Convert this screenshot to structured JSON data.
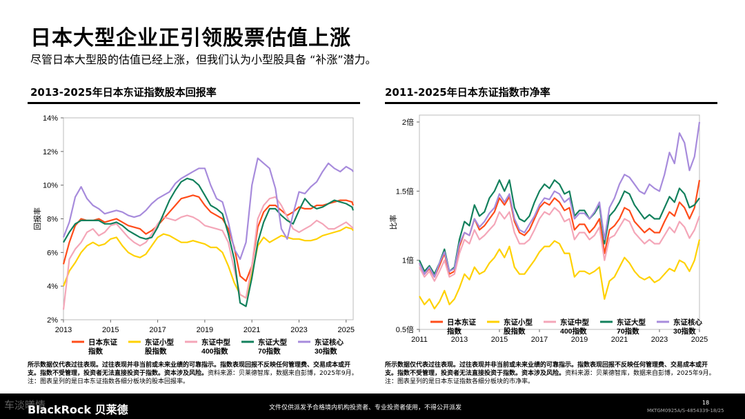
{
  "page": {
    "title": "日本大型企业正引领股票估值上涨",
    "subtitle": "尽管日本大型股的估值已经上涨，但我们认为小型股具备 “补涨”潜力。",
    "page_number": "18",
    "doc_code": "MKTGM0925A/S-4854339-18/25",
    "watermark": "车淡曦情",
    "logo": "BlackRock 贝莱德",
    "disclaimer": "文件仅供派发予合格境内机构投资者、专业投资者使用，不得公开派发"
  },
  "left_chart": {
    "title": "2013-2025年日本东证指数股本回报率",
    "footnote_bold": "所示数据仅代表过往表现。过往表现并非当前或未来业绩的可靠指示。指数表现回报不反映任何管理费、交易成本或开支。指数不受管理，投资者无法直接投资于指数。资本涉及风险。",
    "footnote_rest": "资料来源：贝莱德智库，数据来自彭博，2025年9月。注：图表呈列的是日本东证指数各细分板块的股本回报率。"
  },
  "right_chart": {
    "title": "2011-2025年日本东证指数市净率",
    "footnote_bold": "所示数据仅代表过往表现。过往表现并非当前或未来业绩的可靠指示。指数表现回报不反映任何管理费、交易成本或开支。指数不受管理，投资者无法直接投资于指数。资本涉及风险。",
    "footnote_rest": "资料来源：贝莱德智库，数据来自彭博，2025年9月。注：图表呈列的是日本东证指数各细分板块的市净率。"
  },
  "chart_data": [
    {
      "type": "line",
      "title": "2013-2025年日本东证指数股本回报率",
      "ylabel": "回报率",
      "xlabel": "",
      "xlim": [
        2013,
        2025.3
      ],
      "ylim": [
        2,
        14
      ],
      "yticks": [
        2,
        4,
        6,
        8,
        10,
        12,
        14
      ],
      "ytick_labels": [
        "2%",
        "4%",
        "6%",
        "8%",
        "10%",
        "12%",
        "14%"
      ],
      "xticks": [
        2013,
        2015,
        2017,
        2019,
        2021,
        2023,
        2025
      ],
      "xtick_labels": [
        "2013",
        "2015",
        "2017",
        "2019",
        "2021",
        "2023",
        "2025"
      ],
      "legend_position": "bottom",
      "x": [
        2013.0,
        2013.25,
        2013.5,
        2013.75,
        2014.0,
        2014.25,
        2014.5,
        2014.75,
        2015.0,
        2015.25,
        2015.5,
        2015.75,
        2016.0,
        2016.25,
        2016.5,
        2016.75,
        2017.0,
        2017.25,
        2017.5,
        2017.75,
        2018.0,
        2018.25,
        2018.5,
        2018.75,
        2019.0,
        2019.25,
        2019.5,
        2019.75,
        2020.0,
        2020.25,
        2020.5,
        2020.75,
        2021.0,
        2021.25,
        2021.5,
        2021.75,
        2022.0,
        2022.25,
        2022.5,
        2022.75,
        2023.0,
        2023.25,
        2023.5,
        2023.75,
        2024.0,
        2024.25,
        2024.5,
        2024.75,
        2025.0,
        2025.25,
        2025.3
      ],
      "series": [
        {
          "name": "日本东证\n指数",
          "color": "#ff4c1a",
          "values": [
            5.3,
            6.6,
            7.6,
            8.0,
            7.9,
            7.9,
            8.0,
            7.8,
            7.9,
            8.0,
            7.8,
            7.6,
            7.5,
            7.4,
            7.1,
            7.3,
            7.6,
            8.0,
            8.4,
            8.8,
            9.2,
            9.3,
            9.4,
            9.3,
            8.8,
            8.4,
            8.2,
            8.0,
            7.4,
            6.3,
            4.6,
            4.3,
            5.2,
            7.5,
            8.4,
            8.8,
            8.8,
            8.5,
            8.2,
            8.4,
            8.7,
            8.6,
            8.6,
            8.8,
            8.8,
            8.9,
            9.0,
            9.1,
            9.1,
            9.0,
            8.8
          ]
        },
        {
          "name": "东证小型\n股指数",
          "color": "#ffd100",
          "values": [
            4.0,
            4.9,
            5.4,
            6.0,
            6.4,
            6.6,
            6.4,
            6.5,
            6.8,
            6.9,
            6.4,
            6.0,
            5.8,
            5.7,
            5.9,
            6.4,
            6.9,
            7.1,
            7.0,
            6.8,
            6.6,
            6.6,
            6.7,
            6.6,
            6.5,
            6.3,
            6.3,
            6.0,
            5.2,
            4.2,
            3.5,
            3.3,
            4.7,
            6.4,
            6.9,
            6.6,
            6.8,
            7.0,
            6.9,
            6.8,
            6.8,
            6.7,
            6.7,
            6.8,
            7.0,
            7.1,
            7.2,
            7.3,
            7.5,
            7.4,
            7.3
          ]
        },
        {
          "name": "东证中型\n400指数",
          "color": "#f4a6b8",
          "values": [
            2.6,
            5.6,
            6.2,
            6.6,
            7.2,
            7.4,
            7.0,
            7.2,
            7.6,
            7.7,
            7.3,
            6.9,
            6.6,
            6.4,
            6.6,
            7.1,
            7.7,
            8.1,
            8.0,
            7.9,
            8.1,
            8.2,
            8.1,
            7.9,
            7.6,
            7.5,
            7.4,
            7.3,
            6.6,
            5.0,
            3.5,
            3.3,
            5.2,
            8.0,
            8.8,
            9.2,
            9.3,
            8.8,
            8.1,
            7.4,
            7.2,
            7.4,
            7.6,
            7.9,
            7.7,
            7.4,
            7.4,
            7.6,
            7.8,
            7.5,
            7.4
          ]
        },
        {
          "name": "东证大型\n70指数",
          "color": "#12805c",
          "values": [
            6.6,
            7.2,
            7.7,
            7.9,
            7.9,
            7.9,
            7.9,
            7.7,
            7.7,
            7.8,
            7.6,
            7.3,
            7.1,
            6.9,
            6.8,
            6.9,
            7.5,
            8.3,
            9.1,
            9.7,
            10.2,
            10.4,
            10.3,
            10.0,
            9.4,
            8.8,
            8.6,
            8.3,
            7.1,
            5.6,
            3.0,
            2.8,
            4.5,
            6.6,
            7.8,
            8.6,
            8.6,
            8.2,
            7.9,
            7.7,
            8.5,
            9.2,
            8.8,
            8.6,
            8.7,
            8.9,
            9.1,
            9.0,
            8.9,
            8.7,
            8.5
          ]
        },
        {
          "name": "东证核心\n30指数",
          "color": "#a78bdc",
          "values": [
            6.9,
            7.8,
            9.3,
            9.9,
            9.2,
            8.8,
            8.6,
            8.3,
            8.4,
            8.5,
            8.4,
            8.2,
            8.1,
            8.2,
            8.5,
            8.9,
            9.2,
            9.4,
            9.6,
            10.1,
            10.4,
            10.6,
            10.8,
            11.0,
            11.0,
            10.0,
            9.2,
            9.0,
            7.8,
            6.2,
            5.6,
            6.6,
            10.0,
            11.6,
            11.3,
            11.0,
            9.8,
            7.4,
            6.8,
            8.3,
            9.6,
            9.5,
            9.9,
            10.2,
            10.8,
            11.3,
            11.0,
            10.8,
            11.1,
            10.9,
            10.8
          ]
        }
      ]
    },
    {
      "type": "line",
      "title": "2011-2025年日本东证指数市净率",
      "ylabel": "比率",
      "xlabel": "",
      "xlim": [
        2011,
        2025
      ],
      "ylim": [
        0.5,
        2.05
      ],
      "yticks": [
        0.5,
        1,
        1.5,
        2
      ],
      "ytick_labels": [
        "0.5倍",
        "1倍",
        "1.5倍",
        "2倍"
      ],
      "xticks": [
        2011,
        2013,
        2015,
        2017,
        2019,
        2021,
        2023,
        2025
      ],
      "xtick_labels": [
        "2011",
        "2013",
        "2015",
        "2017",
        "2019",
        "2021",
        "2023",
        "2025"
      ],
      "legend_position": "bottom",
      "x": [
        2011.0,
        2011.25,
        2011.5,
        2011.75,
        2012.0,
        2012.25,
        2012.5,
        2012.75,
        2013.0,
        2013.25,
        2013.5,
        2013.75,
        2014.0,
        2014.25,
        2014.5,
        2014.75,
        2015.0,
        2015.25,
        2015.5,
        2015.75,
        2016.0,
        2016.25,
        2016.5,
        2016.75,
        2017.0,
        2017.25,
        2017.5,
        2017.75,
        2018.0,
        2018.25,
        2018.5,
        2018.75,
        2019.0,
        2019.25,
        2019.5,
        2019.75,
        2020.0,
        2020.25,
        2020.5,
        2020.75,
        2021.0,
        2021.25,
        2021.5,
        2021.75,
        2022.0,
        2022.25,
        2022.5,
        2022.75,
        2023.0,
        2023.25,
        2023.5,
        2023.75,
        2024.0,
        2024.25,
        2024.5,
        2024.75,
        2025.0
      ],
      "series": [
        {
          "name": "日本东证\n指数",
          "color": "#ff4c1a",
          "values": [
            0.98,
            0.9,
            0.94,
            0.88,
            0.96,
            1.05,
            0.9,
            0.92,
            1.1,
            1.2,
            1.18,
            1.3,
            1.22,
            1.25,
            1.3,
            1.35,
            1.45,
            1.4,
            1.46,
            1.28,
            1.2,
            1.18,
            1.22,
            1.3,
            1.38,
            1.42,
            1.4,
            1.45,
            1.42,
            1.36,
            1.38,
            1.22,
            1.26,
            1.26,
            1.2,
            1.24,
            1.3,
            1.05,
            1.22,
            1.25,
            1.3,
            1.38,
            1.36,
            1.28,
            1.24,
            1.2,
            1.23,
            1.2,
            1.2,
            1.28,
            1.35,
            1.32,
            1.42,
            1.38,
            1.3,
            1.38,
            1.58
          ]
        },
        {
          "name": "东证小型\n股指数",
          "color": "#ffd100",
          "values": [
            0.74,
            0.68,
            0.72,
            0.65,
            0.7,
            0.78,
            0.68,
            0.72,
            0.8,
            0.9,
            0.86,
            0.95,
            0.9,
            0.92,
            0.98,
            1.02,
            1.08,
            1.02,
            1.1,
            0.95,
            0.9,
            0.9,
            0.95,
            1.0,
            1.06,
            1.1,
            1.1,
            1.14,
            1.12,
            1.05,
            1.05,
            0.88,
            0.92,
            0.92,
            0.9,
            0.92,
            0.95,
            0.72,
            0.85,
            0.88,
            0.95,
            1.02,
            0.98,
            0.92,
            0.88,
            0.86,
            0.88,
            0.84,
            0.86,
            0.9,
            0.94,
            0.92,
            1.0,
            0.98,
            0.92,
            1.0,
            1.15
          ]
        },
        {
          "name": "东证中型\n400指数",
          "color": "#f4a6b8",
          "values": [
            0.95,
            0.88,
            0.92,
            0.85,
            0.92,
            1.0,
            0.88,
            0.9,
            1.05,
            1.15,
            1.12,
            1.22,
            1.15,
            1.18,
            1.22,
            1.26,
            1.35,
            1.3,
            1.35,
            1.2,
            1.12,
            1.12,
            1.15,
            1.22,
            1.3,
            1.35,
            1.33,
            1.38,
            1.35,
            1.28,
            1.3,
            1.15,
            1.2,
            1.2,
            1.15,
            1.18,
            1.24,
            1.0,
            1.16,
            1.18,
            1.24,
            1.3,
            1.28,
            1.2,
            1.16,
            1.12,
            1.15,
            1.12,
            1.12,
            1.18,
            1.24,
            1.2,
            1.28,
            1.24,
            1.16,
            1.22,
            1.32
          ]
        },
        {
          "name": "东证大型\n70指数",
          "color": "#12805c",
          "values": [
            1.0,
            0.92,
            0.96,
            0.9,
            0.98,
            1.08,
            0.92,
            0.95,
            1.15,
            1.28,
            1.25,
            1.4,
            1.32,
            1.35,
            1.45,
            1.5,
            1.58,
            1.5,
            1.58,
            1.38,
            1.3,
            1.28,
            1.32,
            1.42,
            1.5,
            1.55,
            1.52,
            1.58,
            1.55,
            1.48,
            1.5,
            1.32,
            1.36,
            1.36,
            1.3,
            1.34,
            1.4,
            1.12,
            1.32,
            1.36,
            1.42,
            1.5,
            1.48,
            1.4,
            1.35,
            1.3,
            1.33,
            1.3,
            1.3,
            1.38,
            1.46,
            1.42,
            1.52,
            1.48,
            1.38,
            1.4,
            1.45
          ]
        },
        {
          "name": "东证核心\n30指数",
          "color": "#a78bdc",
          "values": [
            0.98,
            0.9,
            0.95,
            0.88,
            0.98,
            1.06,
            0.92,
            0.94,
            1.12,
            1.2,
            1.18,
            1.3,
            1.24,
            1.28,
            1.34,
            1.38,
            1.48,
            1.42,
            1.48,
            1.3,
            1.22,
            1.2,
            1.26,
            1.32,
            1.4,
            1.45,
            1.44,
            1.5,
            1.48,
            1.42,
            1.45,
            1.3,
            1.34,
            1.34,
            1.3,
            1.35,
            1.42,
            1.15,
            1.38,
            1.45,
            1.55,
            1.62,
            1.6,
            1.55,
            1.5,
            1.48,
            1.55,
            1.52,
            1.5,
            1.62,
            1.78,
            1.7,
            1.92,
            1.85,
            1.65,
            1.75,
            2.0
          ]
        }
      ]
    }
  ]
}
